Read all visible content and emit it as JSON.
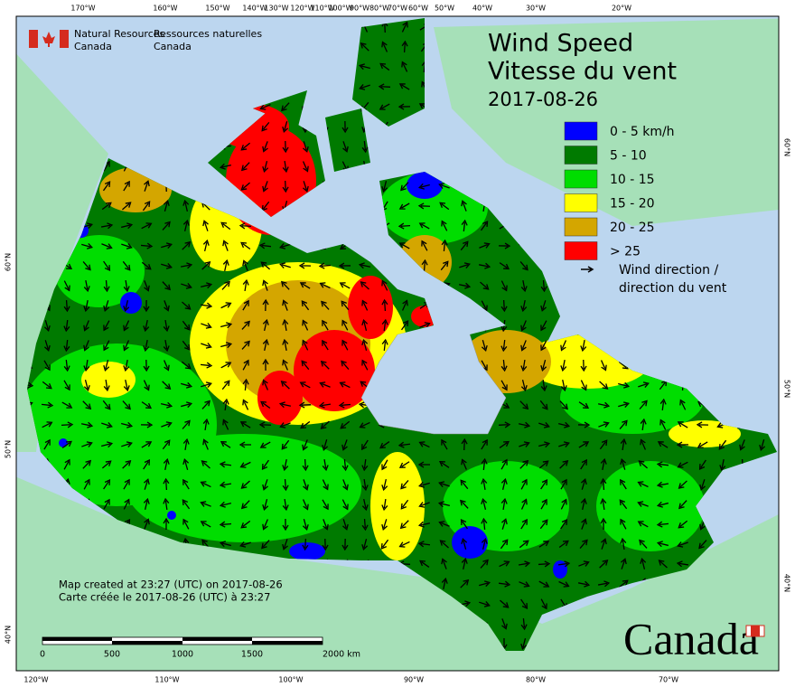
{
  "header": {
    "agency_en": [
      "Natural Resources",
      "Canada"
    ],
    "agency_fr": [
      "Ressources naturelles",
      "Canada"
    ]
  },
  "title": {
    "line1": "Wind Speed",
    "line2": "Vitesse du vent",
    "date": "2017-08-26"
  },
  "legend": {
    "items": [
      {
        "label": "0 - 5 km/h",
        "color": "#0000ff"
      },
      {
        "label": "5 - 10",
        "color": "#007a00"
      },
      {
        "label": "10 - 15",
        "color": "#00dd00"
      },
      {
        "label": "15 - 20",
        "color": "#ffff00"
      },
      {
        "label": "20 - 25",
        "color": "#d4a600"
      },
      {
        "label": "> 25",
        "color": "#ff0000"
      }
    ],
    "arrow_label": [
      "Wind direction /",
      "direction du vent"
    ]
  },
  "footer": {
    "created_en": "Map created at 23:27 (UTC) on 2017-08-26",
    "created_fr": "Carte créée le 2017-08-26 (UTC) à 23:27"
  },
  "scale_bar": {
    "labels": [
      "0",
      "500",
      "1000",
      "1500",
      "2000 km"
    ]
  },
  "wordmark": "Canada",
  "graticule": {
    "top": [
      "170°W",
      "160°W",
      "150°W",
      "140°W",
      "130°W",
      "120°W",
      "110°W",
      "100°W",
      "90°W",
      "80°W",
      "70°W",
      "60°W",
      "50°W",
      "40°W",
      "30°W",
      "20°W"
    ],
    "bottom": [
      "120°W",
      "110°W",
      "100°W",
      "90°W",
      "80°W",
      "70°W"
    ],
    "left": [
      "60°N",
      "50°N",
      "40°N"
    ],
    "right": [
      "60°N",
      "50°N",
      "40°N"
    ]
  }
}
